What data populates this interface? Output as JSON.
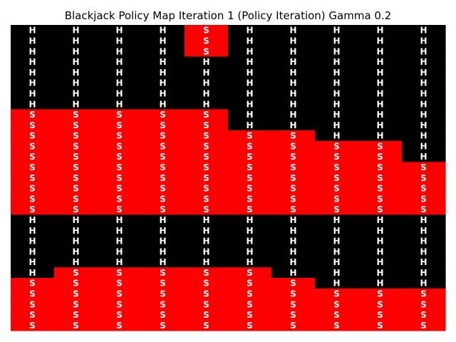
{
  "chart_data": {
    "type": "heatmap",
    "title": "Blackjack Policy Map Iteration 1 (Policy Iteration) Gamma 0.2",
    "colors": {
      "H": "#000000",
      "S": "#ff0000",
      "text": "#ffffff"
    },
    "grid": false,
    "columns": 10,
    "rows": [
      "HHHHSHHHHH",
      "HHHHSHHHHH",
      "HHHHSHHHHH",
      "HHHHHHHHHH",
      "HHHHHHHHHH",
      "HHHHHHHHHH",
      "HHHHHHHHHH",
      "HHHHHHHHHH",
      "SSSSSHHHHH",
      "SSSSSHHHHH",
      "SSSSSSSHHH",
      "SSSSSSSSSH",
      "SSSSSSSSSH",
      "SSSSSSSSSS",
      "SSSSSSSSSS",
      "SSSSSSSSSS",
      "SSSSSSSSSS",
      "SSSSSSSSSS",
      "HHHHHHHHHH",
      "HHHHHHHHHH",
      "HHHHHHHHHH",
      "HHHHHHHHHH",
      "HHHHHHHHHH",
      "HSSSSSHHHH",
      "SSSSSSSHHH",
      "SSSSSSSSSS",
      "SSSSSSSSSS",
      "SSSSSSSSSS",
      "SSSSSSSSSS"
    ]
  }
}
